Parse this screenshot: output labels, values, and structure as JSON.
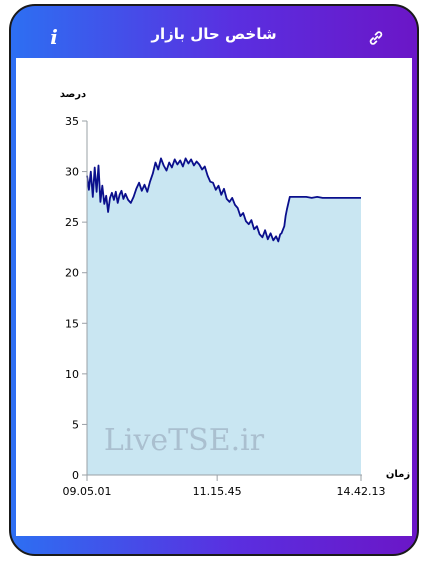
{
  "header": {
    "title": "شاخص حال بازار",
    "info_icon": "info-icon",
    "link_icon": "link-icon"
  },
  "colors": {
    "gradient_start": "#2d6ff2",
    "gradient_end": "#6b16c7",
    "line": "#0a0f8c",
    "area": "#c9e6f2"
  },
  "chart_data": {
    "type": "area",
    "ylabel": "درصد",
    "xlabel": "زمان",
    "ylim": [
      0,
      35
    ],
    "yticks": [
      0,
      5,
      10,
      15,
      20,
      25,
      30,
      35
    ],
    "xticks": [
      "09.05.01",
      "11.15.45",
      "14.42.13"
    ],
    "xlim": [
      0,
      100
    ],
    "xtick_positions": [
      0,
      47.5,
      100
    ],
    "watermark": "LiveTSE.ir",
    "grid": false,
    "legend": "none",
    "x": [
      0,
      0.7,
      1.4,
      2.1,
      2.8,
      3.5,
      4.2,
      4.9,
      5.6,
      6.3,
      7,
      7.7,
      8.4,
      9.1,
      9.8,
      10.5,
      11.2,
      11.9,
      12.6,
      13.3,
      14,
      15,
      16,
      17,
      18,
      19,
      20,
      21,
      22,
      23,
      24,
      25,
      26,
      27,
      28,
      29,
      30,
      31,
      32,
      33,
      34,
      35,
      36,
      37,
      38,
      39,
      40,
      41,
      42,
      43,
      44,
      45,
      46,
      47,
      48,
      49,
      50,
      51,
      52,
      53,
      54,
      55,
      56,
      57,
      58,
      59,
      60,
      61,
      62,
      63,
      64,
      65,
      66,
      67,
      68,
      69,
      69.8,
      70.5,
      71,
      72,
      72.5,
      73,
      74,
      75,
      76,
      78,
      80,
      82,
      84,
      86,
      88,
      90,
      92,
      94,
      96,
      98,
      100
    ],
    "values": [
      29.6,
      28.2,
      30.0,
      27.5,
      30.4,
      28.0,
      30.6,
      27.0,
      28.6,
      26.8,
      27.6,
      26.0,
      27.4,
      27.9,
      27.2,
      28.0,
      26.9,
      27.7,
      28.1,
      27.3,
      27.8,
      27.2,
      26.9,
      27.5,
      28.3,
      28.9,
      28.1,
      28.7,
      28.0,
      29.0,
      29.8,
      30.9,
      30.2,
      31.3,
      30.6,
      30.1,
      30.9,
      30.4,
      31.2,
      30.7,
      31.1,
      30.5,
      31.3,
      30.8,
      31.2,
      30.6,
      31.0,
      30.7,
      30.2,
      30.5,
      29.6,
      29.0,
      28.9,
      28.2,
      28.6,
      27.7,
      28.3,
      27.3,
      27.0,
      27.4,
      26.7,
      26.4,
      25.6,
      25.9,
      25.1,
      24.8,
      25.2,
      24.3,
      24.6,
      23.8,
      23.5,
      24.2,
      23.3,
      23.9,
      23.2,
      23.6,
      23.1,
      23.8,
      23.9,
      24.6,
      25.6,
      26.3,
      27.5,
      27.5,
      27.5,
      27.5,
      27.5,
      27.4,
      27.5,
      27.4,
      27.4,
      27.4,
      27.4,
      27.4,
      27.4,
      27.4,
      27.4
    ]
  }
}
